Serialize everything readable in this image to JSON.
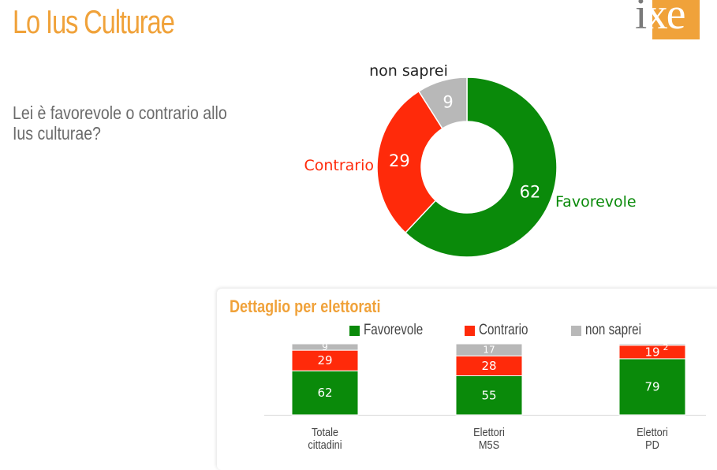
{
  "header": {
    "title": "Lo Ius Culturae"
  },
  "logo": {
    "text_part1": "i",
    "text_part2": "xe"
  },
  "question": "Lei è favorevole o contrario allo Ius culturae?",
  "colors": {
    "favorevole": "#0a8a0a",
    "contrario": "#ff2a0a",
    "non_saprei": "#b8b8b8",
    "accent": "#f0a23a"
  },
  "chart_data": [
    {
      "type": "pie",
      "categories": [
        "Favorevole",
        "Contrario",
        "non saprei"
      ],
      "values": [
        62,
        29,
        9
      ],
      "title": "",
      "donut": true
    },
    {
      "type": "bar",
      "stacked": true,
      "title": "Dettaglio per elettorati",
      "categories": [
        "Totale cittadini",
        "Elettori M5S",
        "Elettori PD"
      ],
      "series": [
        {
          "name": "Favorevole",
          "values": [
            62,
            55,
            79
          ]
        },
        {
          "name": "Contrario",
          "values": [
            29,
            28,
            19
          ]
        },
        {
          "name": "non saprei",
          "values": [
            9,
            17,
            2
          ]
        }
      ],
      "legend_position": "top"
    }
  ],
  "detail": {
    "title": "Dettaglio per elettorati",
    "legend": [
      "Favorevole",
      "Contrario",
      "non saprei"
    ],
    "categories": [
      {
        "line1": "Totale",
        "line2": "cittadini"
      },
      {
        "line1": "Elettori",
        "line2": "M5S"
      },
      {
        "line1": "Elettori",
        "line2": "PD"
      }
    ]
  }
}
